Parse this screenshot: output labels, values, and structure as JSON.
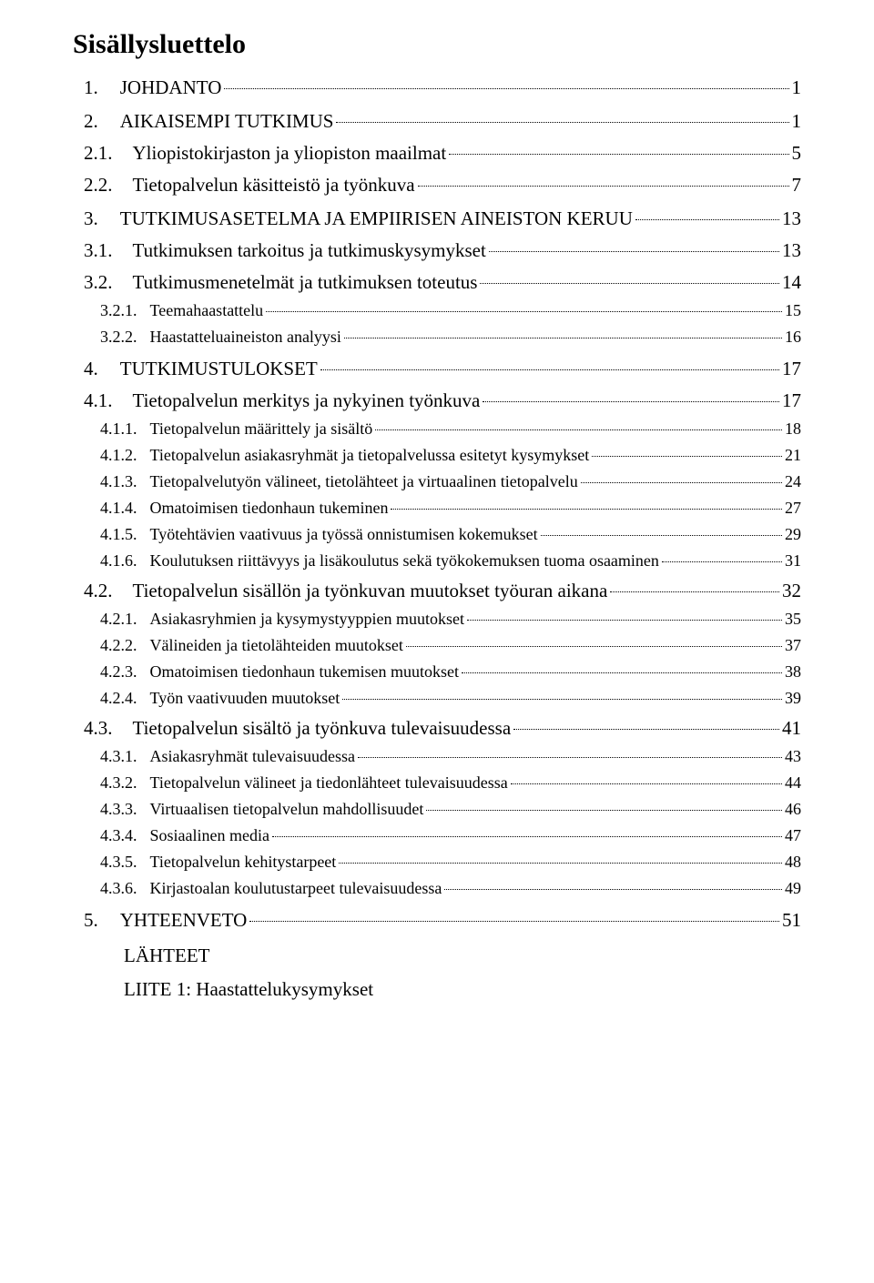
{
  "title": "Sisällysluettelo",
  "toc": [
    {
      "level": 1,
      "num": "1.",
      "label": "JOHDANTO",
      "page": "1"
    },
    {
      "level": 1,
      "num": "2.",
      "label": "AIKAISEMPI TUTKIMUS",
      "page": "1"
    },
    {
      "level": 2,
      "num": "2.1.",
      "label": "Yliopistokirjaston ja yliopiston maailmat",
      "page": "5"
    },
    {
      "level": 2,
      "num": "2.2.",
      "label": "Tietopalvelun käsitteistö ja työnkuva",
      "page": "7"
    },
    {
      "level": 1,
      "num": "3.",
      "label": "TUTKIMUSASETELMA JA EMPIIRISEN AINEISTON KERUU",
      "page": "13"
    },
    {
      "level": 2,
      "num": "3.1.",
      "label": "Tutkimuksen tarkoitus ja tutkimuskysymykset",
      "page": "13"
    },
    {
      "level": 2,
      "num": "3.2.",
      "label": "Tutkimusmenetelmät ja tutkimuksen toteutus",
      "page": "14"
    },
    {
      "level": 3,
      "num": "3.2.1.",
      "label": "Teemahaastattelu",
      "page": "15"
    },
    {
      "level": 3,
      "num": "3.2.2.",
      "label": "Haastatteluaineiston analyysi",
      "page": "16"
    },
    {
      "level": 1,
      "num": "4.",
      "label": "TUTKIMUSTULOKSET",
      "page": "17"
    },
    {
      "level": 2,
      "num": "4.1.",
      "label": "Tietopalvelun merkitys ja nykyinen työnkuva",
      "page": "17"
    },
    {
      "level": 3,
      "num": "4.1.1.",
      "label": "Tietopalvelun määrittely ja sisältö",
      "page": "18"
    },
    {
      "level": 3,
      "num": "4.1.2.",
      "label": "Tietopalvelun asiakasryhmät ja tietopalvelussa esitetyt kysymykset",
      "page": "21"
    },
    {
      "level": 3,
      "num": "4.1.3.",
      "label": "Tietopalvelutyön välineet, tietolähteet ja virtuaalinen tietopalvelu",
      "page": "24"
    },
    {
      "level": 3,
      "num": "4.1.4.",
      "label": "Omatoimisen tiedonhaun tukeminen",
      "page": "27"
    },
    {
      "level": 3,
      "num": "4.1.5.",
      "label": "Työtehtävien vaativuus ja työssä onnistumisen kokemukset",
      "page": "29"
    },
    {
      "level": 3,
      "num": "4.1.6.",
      "label": "Koulutuksen riittävyys ja lisäkoulutus sekä työkokemuksen tuoma osaaminen",
      "page": "31"
    },
    {
      "level": 2,
      "num": "4.2.",
      "label": "Tietopalvelun sisällön ja työnkuvan muutokset työuran aikana",
      "page": "32"
    },
    {
      "level": 3,
      "num": "4.2.1.",
      "label": "Asiakasryhmien ja kysymystyyppien muutokset",
      "page": "35"
    },
    {
      "level": 3,
      "num": "4.2.2.",
      "label": "Välineiden ja tietolähteiden muutokset",
      "page": "37"
    },
    {
      "level": 3,
      "num": "4.2.3.",
      "label": "Omatoimisen tiedonhaun tukemisen muutokset",
      "page": "38"
    },
    {
      "level": 3,
      "num": "4.2.4.",
      "label": "Työn vaativuuden muutokset",
      "page": "39"
    },
    {
      "level": 2,
      "num": "4.3.",
      "label": "Tietopalvelun sisältö ja työnkuva tulevaisuudessa",
      "page": "41"
    },
    {
      "level": 3,
      "num": "4.3.1.",
      "label": "Asiakasryhmät tulevaisuudessa",
      "page": "43"
    },
    {
      "level": 3,
      "num": "4.3.2.",
      "label": "Tietopalvelun välineet ja tiedonlähteet tulevaisuudessa",
      "page": "44"
    },
    {
      "level": 3,
      "num": "4.3.3.",
      "label": "Virtuaalisen tietopalvelun mahdollisuudet",
      "page": "46"
    },
    {
      "level": 3,
      "num": "4.3.4.",
      "label": "Sosiaalinen media ",
      "page": "47"
    },
    {
      "level": 3,
      "num": "4.3.5.",
      "label": "Tietopalvelun kehitystarpeet",
      "page": "48"
    },
    {
      "level": 3,
      "num": "4.3.6.",
      "label": "Kirjastoalan koulutustarpeet tulevaisuudessa",
      "page": "49"
    },
    {
      "level": 1,
      "num": "5.",
      "label": "YHTEENVETO",
      "page": "51"
    }
  ],
  "appendix": [
    "LÄHTEET",
    "LIITE 1: Haastattelukysymykset"
  ]
}
